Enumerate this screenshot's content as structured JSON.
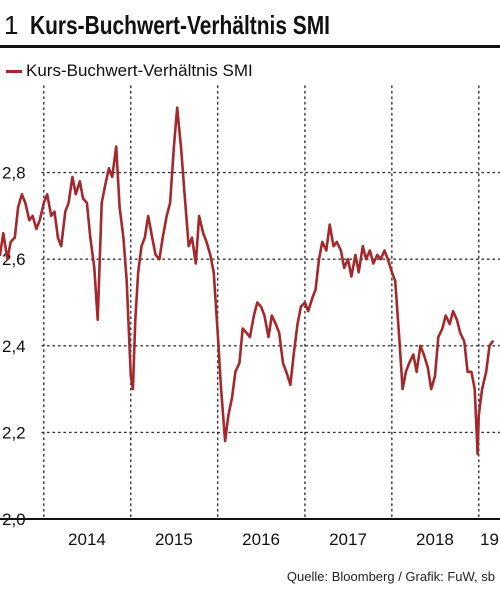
{
  "header": {
    "figure_number": "1",
    "title": "Kurs-Buchwert-Verhältnis SMI"
  },
  "legend": {
    "label": "Kurs-Buchwert-Verhältnis SMI"
  },
  "source": "Quelle: Bloomberg / Grafik: FuW, sb",
  "colors": {
    "line": "#A4282C",
    "rule": "#111111",
    "grid": "#333333"
  },
  "chart_data": {
    "type": "line",
    "title": "Kurs-Buchwert-Verhältnis SMI",
    "xlabel": "",
    "ylabel": "",
    "x_tick_labels": [
      "2014",
      "2015",
      "2016",
      "2017",
      "2018",
      "19"
    ],
    "y_tick_labels": [
      "2,0",
      "2,2",
      "2,4",
      "2,6",
      "2,8"
    ],
    "y_ticks": [
      2.0,
      2.2,
      2.4,
      2.6,
      2.8
    ],
    "xlim": [
      "2013-07-01",
      "2019-03-31"
    ],
    "ylim": [
      2.0,
      3.0
    ],
    "grid": "dotted",
    "legend_position": "top-left",
    "series": [
      {
        "name": "Kurs-Buchwert-Verhältnis SMI",
        "x": [
          "2013-07-01",
          "2013-07-15",
          "2013-08-01",
          "2013-08-15",
          "2013-09-01",
          "2013-09-15",
          "2013-10-01",
          "2013-10-15",
          "2013-11-01",
          "2013-11-15",
          "2013-12-01",
          "2013-12-15",
          "2014-01-01",
          "2014-01-15",
          "2014-02-01",
          "2014-02-15",
          "2014-03-01",
          "2014-03-15",
          "2014-04-01",
          "2014-04-15",
          "2014-05-01",
          "2014-05-15",
          "2014-06-01",
          "2014-06-15",
          "2014-07-01",
          "2014-07-15",
          "2014-08-01",
          "2014-08-15",
          "2014-09-01",
          "2014-09-15",
          "2014-10-01",
          "2014-10-15",
          "2014-11-01",
          "2014-11-15",
          "2014-12-01",
          "2014-12-15",
          "2015-01-01",
          "2015-01-10",
          "2015-01-15",
          "2015-01-20",
          "2015-02-01",
          "2015-02-15",
          "2015-03-01",
          "2015-03-15",
          "2015-04-01",
          "2015-04-15",
          "2015-05-01",
          "2015-05-15",
          "2015-06-01",
          "2015-06-15",
          "2015-07-01",
          "2015-07-15",
          "2015-08-01",
          "2015-08-15",
          "2015-09-01",
          "2015-09-15",
          "2015-10-01",
          "2015-10-15",
          "2015-11-01",
          "2015-11-15",
          "2015-12-01",
          "2015-12-15",
          "2016-01-01",
          "2016-01-15",
          "2016-02-01",
          "2016-02-15",
          "2016-03-01",
          "2016-03-15",
          "2016-04-01",
          "2016-04-15",
          "2016-05-01",
          "2016-05-15",
          "2016-06-01",
          "2016-06-15",
          "2016-07-01",
          "2016-07-15",
          "2016-08-01",
          "2016-08-15",
          "2016-09-01",
          "2016-09-15",
          "2016-10-01",
          "2016-10-15",
          "2016-11-01",
          "2016-11-15",
          "2016-12-01",
          "2016-12-15",
          "2017-01-01",
          "2017-01-15",
          "2017-02-01",
          "2017-02-15",
          "2017-03-01",
          "2017-03-15",
          "2017-04-01",
          "2017-04-15",
          "2017-05-01",
          "2017-05-15",
          "2017-06-01",
          "2017-06-15",
          "2017-07-01",
          "2017-07-15",
          "2017-08-01",
          "2017-08-15",
          "2017-09-01",
          "2017-09-15",
          "2017-10-01",
          "2017-10-15",
          "2017-11-01",
          "2017-11-15",
          "2017-12-01",
          "2017-12-15",
          "2018-01-01",
          "2018-01-15",
          "2018-02-01",
          "2018-02-15",
          "2018-03-01",
          "2018-03-15",
          "2018-04-01",
          "2018-04-15",
          "2018-05-01",
          "2018-05-15",
          "2018-06-01",
          "2018-06-15",
          "2018-07-01",
          "2018-07-15",
          "2018-08-01",
          "2018-08-15",
          "2018-09-01",
          "2018-09-15",
          "2018-10-01",
          "2018-10-15",
          "2018-11-01",
          "2018-11-15",
          "2018-12-01",
          "2018-12-15",
          "2018-12-27",
          "2019-01-01",
          "2019-01-15",
          "2019-02-01",
          "2019-02-15",
          "2019-02-28"
        ],
        "values": [
          2.61,
          2.66,
          2.6,
          2.64,
          2.65,
          2.72,
          2.75,
          2.73,
          2.69,
          2.7,
          2.67,
          2.69,
          2.73,
          2.75,
          2.7,
          2.71,
          2.65,
          2.63,
          2.71,
          2.73,
          2.79,
          2.75,
          2.78,
          2.74,
          2.73,
          2.65,
          2.58,
          2.46,
          2.73,
          2.77,
          2.81,
          2.79,
          2.86,
          2.72,
          2.65,
          2.55,
          2.33,
          2.3,
          2.38,
          2.46,
          2.57,
          2.63,
          2.65,
          2.7,
          2.65,
          2.61,
          2.6,
          2.65,
          2.7,
          2.73,
          2.86,
          2.95,
          2.85,
          2.75,
          2.63,
          2.65,
          2.59,
          2.7,
          2.66,
          2.64,
          2.61,
          2.57,
          2.43,
          2.3,
          2.18,
          2.24,
          2.28,
          2.34,
          2.36,
          2.44,
          2.43,
          2.42,
          2.47,
          2.5,
          2.49,
          2.47,
          2.42,
          2.47,
          2.45,
          2.43,
          2.36,
          2.34,
          2.31,
          2.38,
          2.45,
          2.49,
          2.5,
          2.48,
          2.51,
          2.53,
          2.6,
          2.64,
          2.62,
          2.68,
          2.63,
          2.64,
          2.62,
          2.58,
          2.6,
          2.56,
          2.61,
          2.57,
          2.63,
          2.6,
          2.62,
          2.59,
          2.61,
          2.6,
          2.62,
          2.6,
          2.57,
          2.55,
          2.42,
          2.3,
          2.34,
          2.36,
          2.38,
          2.34,
          2.4,
          2.38,
          2.35,
          2.3,
          2.33,
          2.42,
          2.44,
          2.47,
          2.45,
          2.48,
          2.46,
          2.43,
          2.41,
          2.34,
          2.34,
          2.3,
          2.15,
          2.24,
          2.3,
          2.34,
          2.4,
          2.41
        ]
      }
    ]
  }
}
